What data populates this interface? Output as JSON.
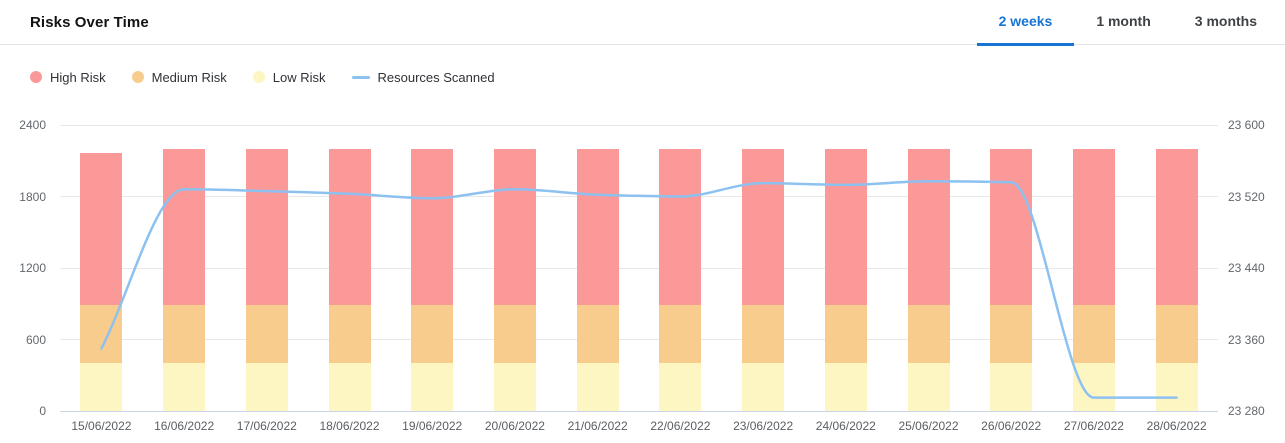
{
  "header": {
    "title": "Risks Over Time",
    "tabs": [
      {
        "label": "2 weeks",
        "active": true
      },
      {
        "label": "1 month",
        "active": false
      },
      {
        "label": "3 months",
        "active": false
      }
    ]
  },
  "legend": [
    {
      "label": "High Risk",
      "marker": "circle",
      "color": "#fb9898"
    },
    {
      "label": "Medium Risk",
      "marker": "circle",
      "color": "#f8cc8c"
    },
    {
      "label": "Low Risk",
      "marker": "circle",
      "color": "#fdf6c3"
    },
    {
      "label": "Resources Scanned",
      "marker": "line",
      "color": "#8dc1f0"
    }
  ],
  "colors": {
    "accent_blue": "#1874d2",
    "high_risk": "#fb9898",
    "medium_risk": "#f8cc8c",
    "low_risk": "#fdf6c3",
    "line_blue": "#8dc1f0",
    "gridline": "#e8e8e8",
    "axis_line": "#cbd5e6"
  },
  "chart_data": {
    "type": "bar",
    "subtype": "stacked-bar-with-line",
    "title": "Risks Over Time",
    "categories": [
      "15/06/2022",
      "16/06/2022",
      "17/06/2022",
      "18/06/2022",
      "19/06/2022",
      "20/06/2022",
      "21/06/2022",
      "22/06/2022",
      "23/06/2022",
      "24/06/2022",
      "25/06/2022",
      "26/06/2022",
      "27/06/2022",
      "28/06/2022"
    ],
    "series": [
      {
        "name": "Low Risk",
        "type": "bar",
        "stack": true,
        "axis": "left",
        "color": "#fdf6c3",
        "values": [
          400,
          400,
          400,
          400,
          400,
          400,
          400,
          400,
          400,
          400,
          400,
          400,
          400,
          400
        ]
      },
      {
        "name": "Medium Risk",
        "type": "bar",
        "stack": true,
        "axis": "left",
        "color": "#f8cc8c",
        "values": [
          490,
          490,
          490,
          490,
          490,
          490,
          490,
          490,
          490,
          490,
          490,
          490,
          490,
          490
        ]
      },
      {
        "name": "High Risk",
        "type": "bar",
        "stack": true,
        "axis": "left",
        "color": "#fb9898",
        "values": [
          1275,
          1310,
          1310,
          1310,
          1310,
          1310,
          1310,
          1310,
          1310,
          1310,
          1310,
          1310,
          1310,
          1310
        ]
      },
      {
        "name": "Resources Scanned",
        "type": "line",
        "axis": "right",
        "color": "#8dc1f0",
        "smooth": true,
        "values": [
          23350,
          23528,
          23526,
          23523,
          23518,
          23528,
          23522,
          23520,
          23535,
          23533,
          23537,
          23536,
          23295,
          23295
        ]
      }
    ],
    "left_axis": {
      "min": 0,
      "max": 2400,
      "ticks": [
        0,
        600,
        1200,
        1800,
        2400
      ]
    },
    "right_axis": {
      "min": 23280,
      "max": 23600,
      "ticks": [
        23280,
        23360,
        23440,
        23520,
        23600
      ],
      "tick_labels": [
        "23 280",
        "23 360",
        "23 440",
        "23 520",
        "23 600"
      ]
    },
    "grid": true,
    "legend_position": "top-left",
    "xlabel": "",
    "ylabel": ""
  }
}
